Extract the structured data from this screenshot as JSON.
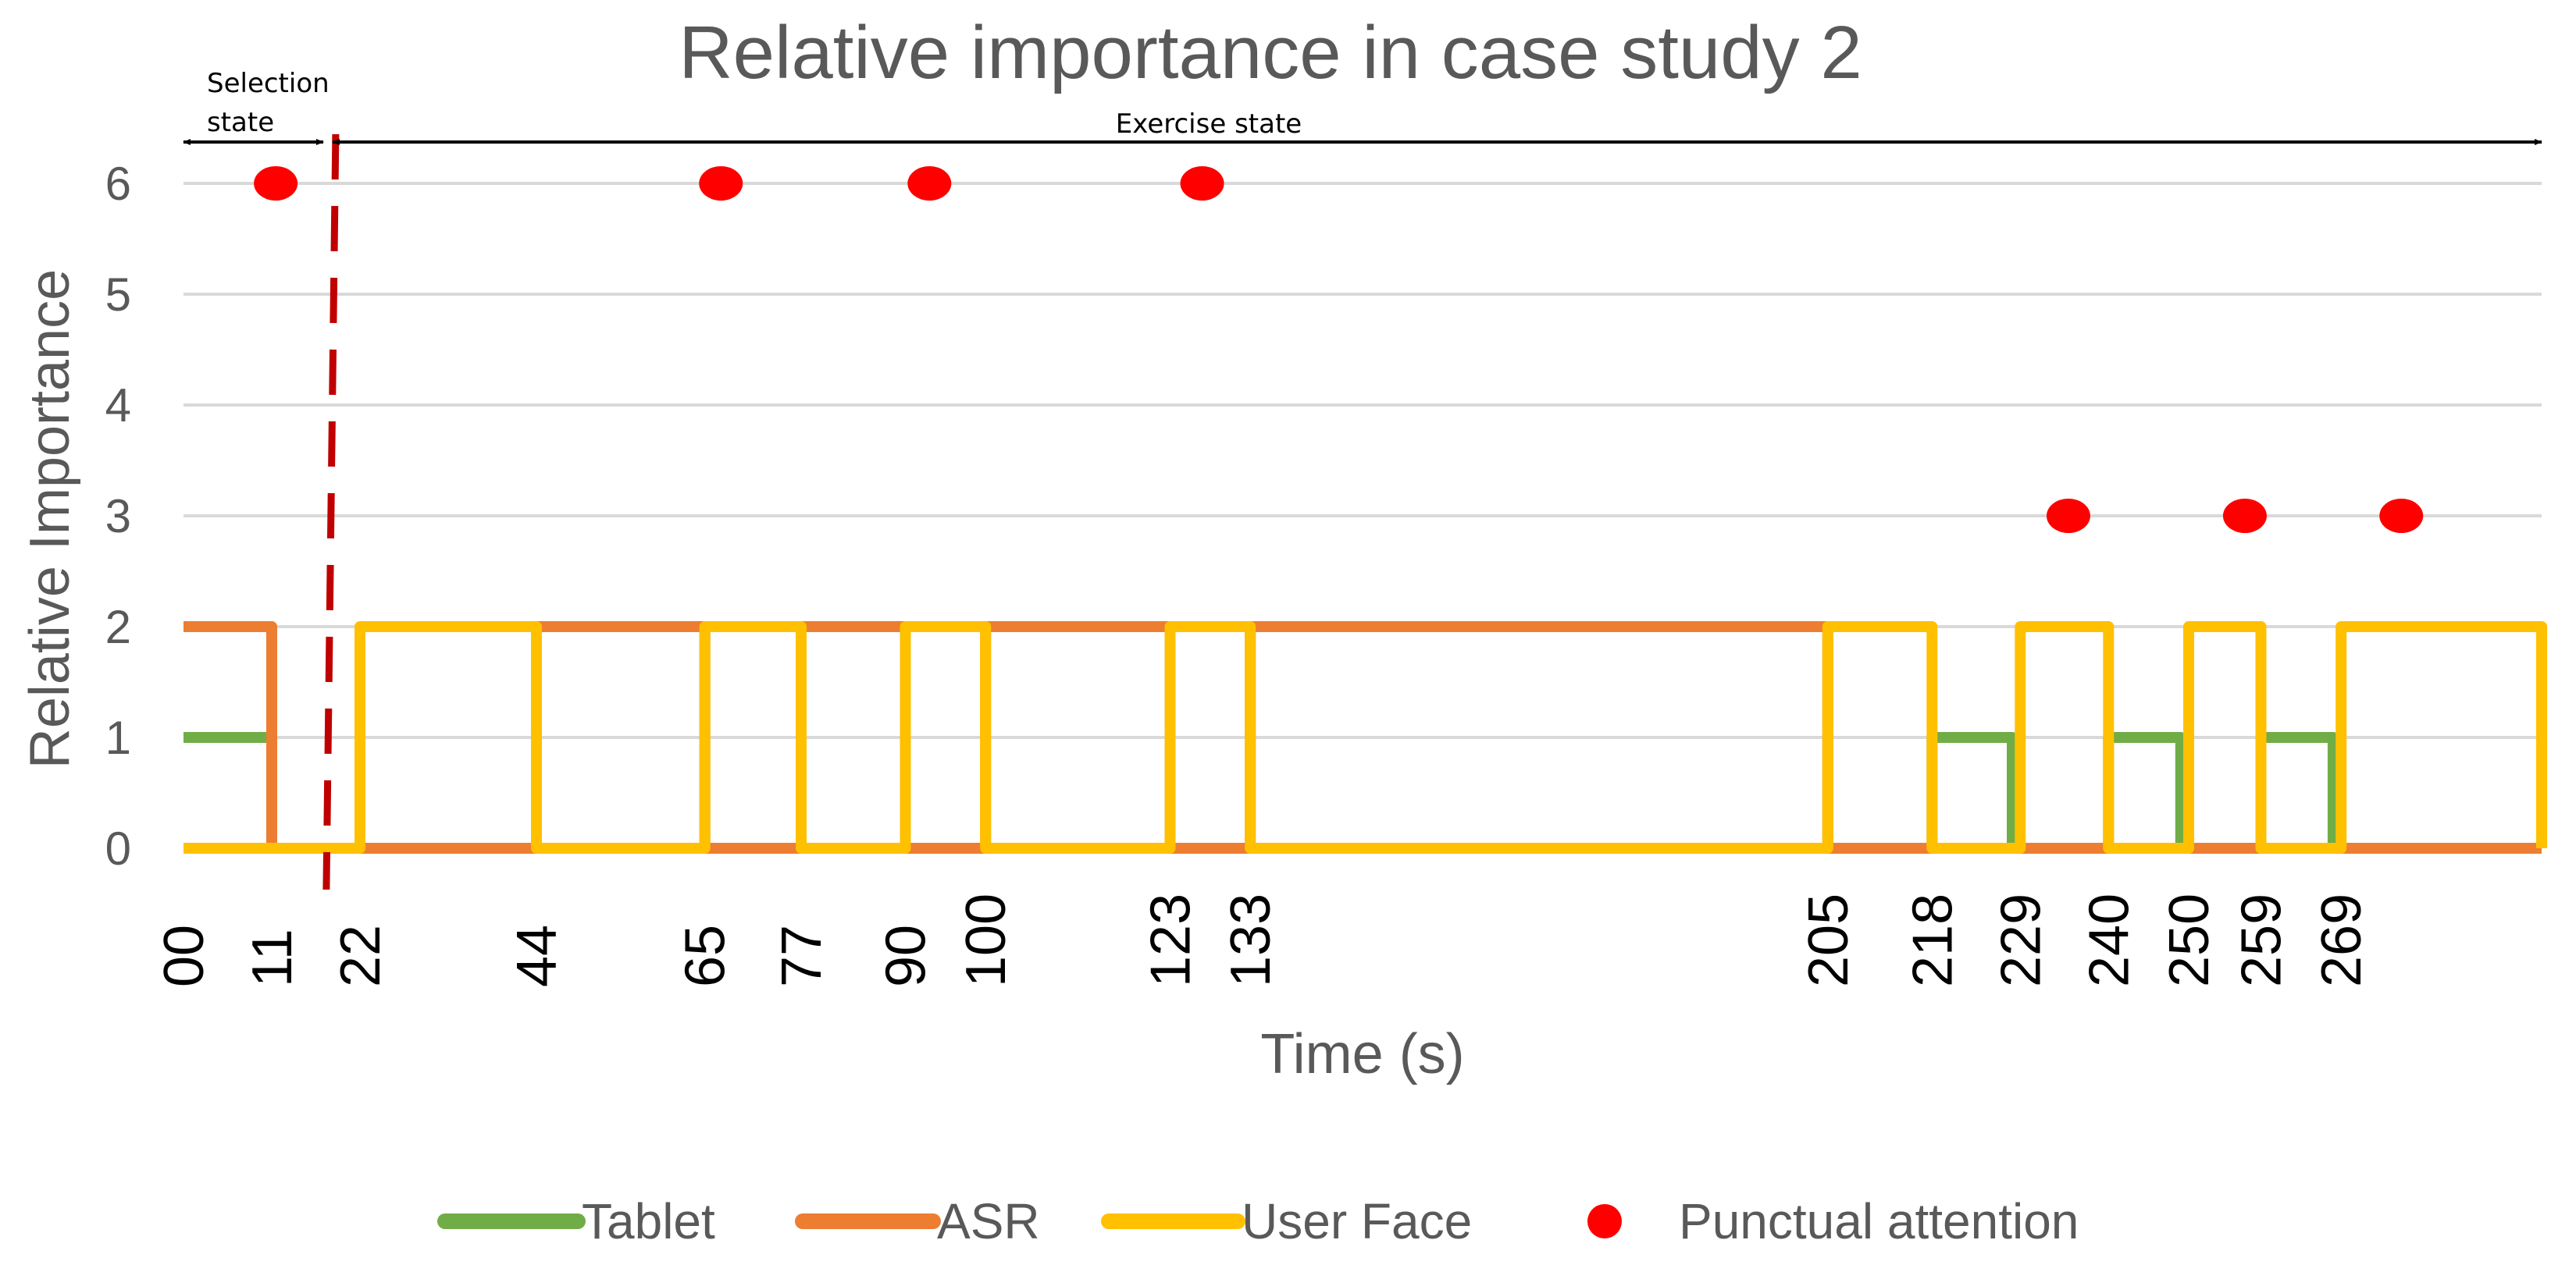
{
  "chart_data": {
    "type": "line",
    "title": "Relative importance in case study 2",
    "xlabel": "Time (s)",
    "ylabel": "Relative Importance",
    "ylim": [
      0,
      6
    ],
    "yticks": [
      0,
      1,
      2,
      3,
      4,
      5,
      6
    ],
    "xlim": [
      0,
      294
    ],
    "grid": true,
    "legend_position": "bottom",
    "xtick_labels": [
      {
        "label": "00",
        "x": 0
      },
      {
        "label": "11",
        "x": 11
      },
      {
        "label": "22",
        "x": 22
      },
      {
        "label": "44",
        "x": 44
      },
      {
        "label": "65",
        "x": 65
      },
      {
        "label": "77",
        "x": 77
      },
      {
        "label": "90",
        "x": 90
      },
      {
        "label": "100",
        "x": 100
      },
      {
        "label": "123",
        "x": 123
      },
      {
        "label": "133",
        "x": 133
      },
      {
        "label": "205",
        "x": 205
      },
      {
        "label": "218",
        "x": 218
      },
      {
        "label": "229",
        "x": 229
      },
      {
        "label": "240",
        "x": 240
      },
      {
        "label": "250",
        "x": 250
      },
      {
        "label": "259",
        "x": 259
      },
      {
        "label": "269",
        "x": 269
      }
    ],
    "series": [
      {
        "name": "Tablet",
        "color": "#70ad47",
        "points": [
          [
            0,
            1
          ],
          [
            11,
            1
          ],
          [
            11,
            0
          ],
          [
            218,
            0
          ],
          [
            218,
            1
          ],
          [
            228,
            1
          ],
          [
            228,
            0
          ],
          [
            240,
            0
          ],
          [
            240,
            1
          ],
          [
            249,
            1
          ],
          [
            249,
            0
          ],
          [
            259,
            0
          ],
          [
            259,
            1
          ],
          [
            268,
            1
          ],
          [
            268,
            0
          ],
          [
            294,
            0
          ]
        ]
      },
      {
        "name": "ASR",
        "color": "#ed7d31",
        "points": [
          [
            0,
            2
          ],
          [
            11,
            2
          ],
          [
            11,
            0
          ],
          [
            44,
            0
          ],
          [
            44,
            2
          ],
          [
            65,
            2
          ],
          [
            65,
            0
          ],
          [
            77,
            0
          ],
          [
            77,
            2
          ],
          [
            90,
            2
          ],
          [
            90,
            0
          ],
          [
            100,
            0
          ],
          [
            100,
            2
          ],
          [
            123,
            2
          ],
          [
            123,
            0
          ],
          [
            133,
            0
          ],
          [
            133,
            2
          ],
          [
            205,
            2
          ],
          [
            205,
            0
          ],
          [
            294,
            0
          ]
        ]
      },
      {
        "name": "User Face",
        "color": "#ffc000",
        "points": [
          [
            0,
            0
          ],
          [
            22,
            0
          ],
          [
            22,
            2
          ],
          [
            44,
            2
          ],
          [
            44,
            0
          ],
          [
            65,
            0
          ],
          [
            65,
            2
          ],
          [
            77,
            2
          ],
          [
            77,
            0
          ],
          [
            90,
            0
          ],
          [
            90,
            2
          ],
          [
            100,
            2
          ],
          [
            100,
            0
          ],
          [
            123,
            0
          ],
          [
            123,
            2
          ],
          [
            133,
            2
          ],
          [
            133,
            0
          ],
          [
            205,
            0
          ],
          [
            205,
            2
          ],
          [
            218,
            2
          ],
          [
            218,
            0
          ],
          [
            229,
            0
          ],
          [
            229,
            2
          ],
          [
            240,
            2
          ],
          [
            240,
            0
          ],
          [
            250,
            0
          ],
          [
            250,
            2
          ],
          [
            259,
            2
          ],
          [
            259,
            0
          ],
          [
            269,
            0
          ],
          [
            269,
            2
          ],
          [
            294,
            2
          ],
          [
            294,
            0
          ]
        ]
      }
    ],
    "punctual_attention": {
      "name": "Punctual attention",
      "color": "#ff0000",
      "points": [
        [
          11.5,
          6
        ],
        [
          67,
          6
        ],
        [
          93,
          6
        ],
        [
          127,
          6
        ],
        [
          235,
          3
        ],
        [
          257,
          3
        ],
        [
          276.5,
          3
        ]
      ]
    },
    "state_divider": {
      "x": 18,
      "color": "#c00000"
    },
    "annotations": {
      "selection_state": {
        "line1": "Selection",
        "line2": "state",
        "x_start": 0,
        "x_end": 18
      },
      "exercise_state": {
        "text": "Exercise state",
        "x_start": 18,
        "x_end": 294
      }
    }
  }
}
